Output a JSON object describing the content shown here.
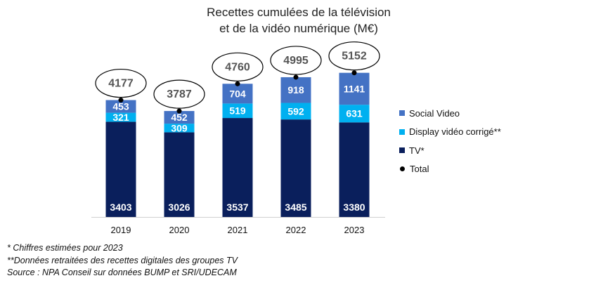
{
  "chart_data": {
    "type": "bar",
    "stacked": true,
    "title_lines": [
      "Recettes cumulées de la télévision",
      "et de la vidéo numérique (M€)"
    ],
    "categories": [
      "2019",
      "2020",
      "2021",
      "2022",
      "2023"
    ],
    "series": [
      {
        "name": "TV*",
        "values": [
          3403,
          3026,
          3537,
          3485,
          3380
        ],
        "color": "#0a1f5c"
      },
      {
        "name": "Display vidéo corrigé**",
        "values": [
          321,
          309,
          519,
          592,
          631
        ],
        "color": "#00b0f0"
      },
      {
        "name": "Social Video",
        "values": [
          453,
          452,
          704,
          918,
          1141
        ],
        "color": "#4472c4"
      }
    ],
    "totals": {
      "name": "Total",
      "values": [
        4177,
        3787,
        4760,
        4995,
        5152
      ]
    },
    "legend_order": [
      "Social Video",
      "Display vidéo corrigé**",
      "TV*",
      "Total"
    ],
    "legend_position": "right",
    "grid": false
  },
  "footnotes": [
    "* Chiffres estimées pour 2023",
    "**Données retraitées des recettes digitales des groupes TV",
    "Source : NPA Conseil sur données BUMP et SRI/UDECAM"
  ]
}
